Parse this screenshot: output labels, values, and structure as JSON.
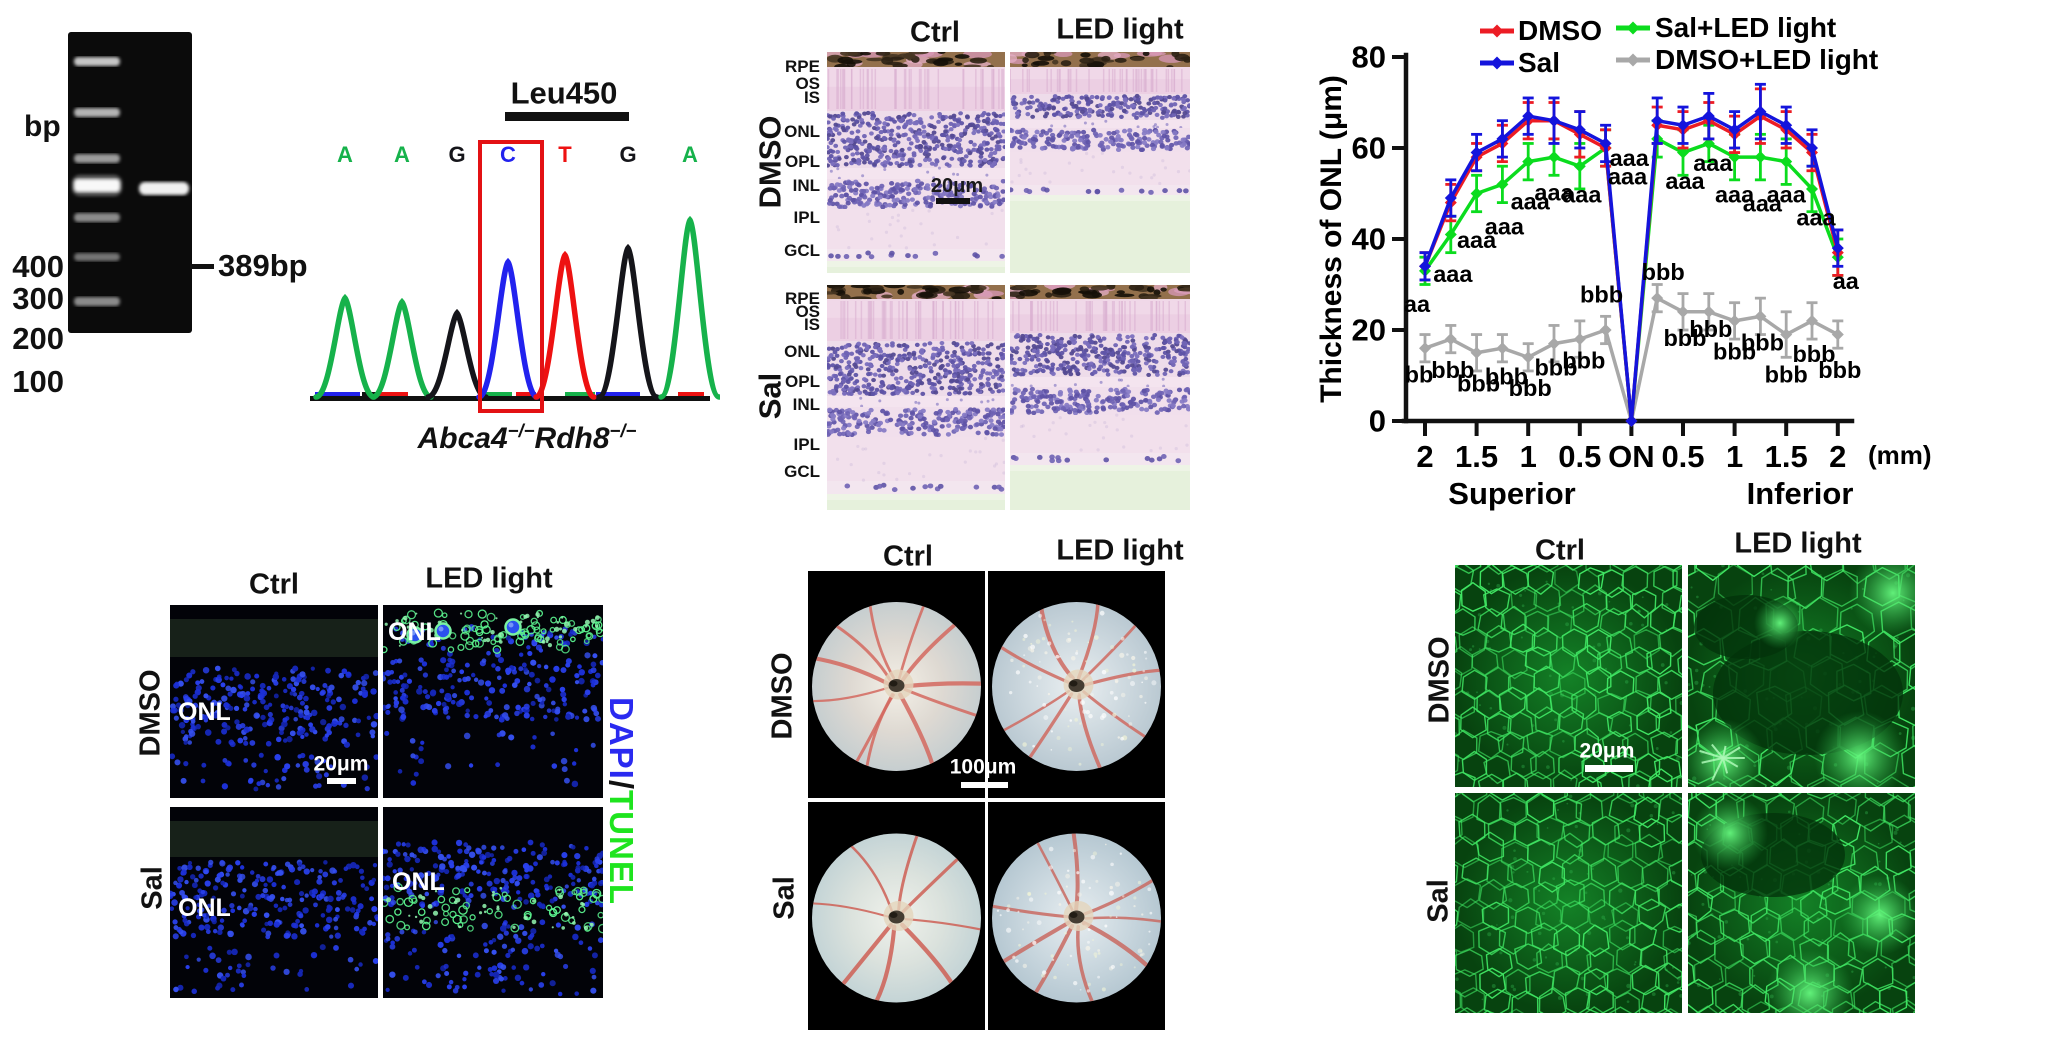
{
  "gel": {
    "unit_label": "bp",
    "size_labels": [
      "400",
      "300",
      "200",
      "100"
    ],
    "band_label": "389bp"
  },
  "chromatogram": {
    "title": "Leu450",
    "bases": [
      {
        "letter": "A",
        "color": "#16B24B"
      },
      {
        "letter": "A",
        "color": "#16B24B"
      },
      {
        "letter": "G",
        "color": "#15151a"
      },
      {
        "letter": "C",
        "color": "#2222EE"
      },
      {
        "letter": "T",
        "color": "#EE1111"
      },
      {
        "letter": "G",
        "color": "#15151a"
      },
      {
        "letter": "A",
        "color": "#16B24B"
      }
    ],
    "highlighted_base_index": 3,
    "caption": {
      "gene1": "Abca4",
      "sup1": "−/−",
      "gene2": "Rdh8",
      "sup2": "−/−"
    }
  },
  "histology": {
    "col_headers": [
      "Ctrl",
      "LED light"
    ],
    "row_labels": [
      "DMSO",
      "Sal"
    ],
    "layers": [
      "RPE",
      "OS",
      "IS",
      "ONL",
      "OPL",
      "INL",
      "IPL",
      "GCL"
    ],
    "scale_label": "20μm"
  },
  "tunel": {
    "col_headers": [
      "Ctrl",
      "LED light"
    ],
    "row_labels": [
      "DMSO",
      "Sal"
    ],
    "onl_label": "ONL",
    "scale_label": "20μm",
    "stain": {
      "dapi": "DAPI",
      "slash": "/",
      "tunel": "TUNEL",
      "dapi_color": "#2a2af0",
      "tunel_color": "#1ee41e"
    }
  },
  "fundus": {
    "col_headers": [
      "Ctrl",
      "LED light"
    ],
    "row_labels": [
      "DMSO",
      "Sal"
    ],
    "scale_label": "100μm"
  },
  "rpe": {
    "col_headers": [
      "Ctrl",
      "LED light"
    ],
    "row_labels": [
      "DMSO",
      "Sal"
    ],
    "scale_label": "20μm"
  },
  "chart_data": {
    "type": "line",
    "title": "",
    "ylabel": "Thickness of ONL (μm)",
    "x_unit_label": "(mm)",
    "x_tick_labels": [
      "2",
      "1.5",
      "1",
      "0.5",
      "ON",
      "0.5",
      "1",
      "1.5",
      "2"
    ],
    "region_labels": {
      "left": "Superior",
      "right": "Inferior"
    },
    "ylim": [
      0,
      80
    ],
    "yticks": [
      0,
      20,
      40,
      60,
      80
    ],
    "x_points_mm": [
      "2",
      "1.75",
      "1.5",
      "1.25",
      "1",
      "0.75",
      "0.5",
      "0.25",
      "ON",
      "0.25",
      "0.5",
      "0.75",
      "1",
      "1.25",
      "1.5",
      "1.75",
      "2"
    ],
    "grid": false,
    "legend_position": "top",
    "series": [
      {
        "name": "DMSO",
        "color": "#EC1C24",
        "values": [
          34,
          48,
          58,
          61,
          66,
          66,
          63,
          60,
          0,
          65,
          64,
          66,
          63,
          67,
          64,
          59,
          37
        ],
        "err": [
          3,
          4,
          3,
          4,
          4,
          4,
          5,
          4,
          0,
          4,
          4,
          4,
          4,
          6,
          4,
          4,
          5
        ]
      },
      {
        "name": "Sal",
        "color": "#1414DC",
        "values": [
          34,
          49,
          59,
          62,
          67,
          66,
          64,
          61,
          0,
          66,
          65,
          67,
          64,
          68,
          65,
          60,
          38
        ],
        "err": [
          3,
          4,
          4,
          4,
          4,
          5,
          4,
          4,
          0,
          5,
          4,
          5,
          4,
          6,
          4,
          4,
          4
        ]
      },
      {
        "name": "Sal+LED light",
        "color": "#0BDC1E",
        "values": [
          33,
          41,
          50,
          52,
          57,
          58,
          56,
          60,
          0,
          62,
          59,
          61,
          58,
          58,
          57,
          51,
          36
        ],
        "err": [
          3,
          4,
          4,
          4,
          4,
          4,
          5,
          4,
          0,
          4,
          5,
          4,
          5,
          5,
          5,
          5,
          4
        ]
      },
      {
        "name": "DMSO+LED light",
        "color": "#A8A8A8",
        "values": [
          16,
          18,
          15,
          16,
          14,
          17,
          18,
          20,
          0,
          27,
          24,
          24,
          22,
          23,
          19,
          22,
          19
        ],
        "err": [
          3,
          3,
          4,
          3,
          3,
          4,
          4,
          3,
          0,
          3,
          4,
          4,
          4,
          4,
          5,
          4,
          3
        ]
      }
    ],
    "legend": {
      "col1": [
        "DMSO",
        "Sal"
      ],
      "col2": [
        "Sal+LED light",
        "DMSO+LED light"
      ]
    },
    "annotations": {
      "a": [
        [
          "aa",
          0,
          24,
          -8
        ],
        [
          "aaa",
          1,
          30.5,
          2
        ],
        [
          "aaa",
          2,
          38,
          0
        ],
        [
          "aaa",
          3,
          41,
          2
        ],
        [
          "aaa",
          4,
          46.5,
          2
        ],
        [
          "aaa",
          5,
          48.5,
          0
        ],
        [
          "aaa",
          6,
          48,
          2
        ],
        [
          "aaa",
          7,
          52,
          22
        ],
        [
          "aaa",
          9,
          56,
          -28
        ],
        [
          "aaa",
          10,
          51,
          2
        ],
        [
          "aaa",
          11,
          55,
          4
        ],
        [
          "aaa",
          12,
          48,
          0
        ],
        [
          "aaa",
          13,
          46,
          2
        ],
        [
          "aaa",
          14,
          48,
          0
        ],
        [
          "aaa",
          15,
          43,
          4
        ],
        [
          "aa",
          16,
          29,
          8
        ]
      ],
      "b": [
        [
          "bb",
          0,
          8.5,
          -6
        ],
        [
          "bbb",
          1,
          9.5,
          2
        ],
        [
          "bbb",
          2,
          6.5,
          2
        ],
        [
          "bbb",
          3,
          8,
          4
        ],
        [
          "bbb",
          4,
          5.5,
          2
        ],
        [
          "bbb",
          5,
          10,
          2
        ],
        [
          "bbb",
          6,
          11.5,
          4
        ],
        [
          "bbb",
          7,
          26,
          -4
        ],
        [
          "bbb",
          9,
          31,
          6
        ],
        [
          "bbb",
          10,
          16.5,
          2
        ],
        [
          "bbb",
          11,
          18.5,
          2
        ],
        [
          "bbb",
          12,
          13.5,
          0
        ],
        [
          "bbb",
          13,
          15.5,
          2
        ],
        [
          "bbb",
          14,
          8.5,
          0
        ],
        [
          "bbb",
          15,
          13,
          2
        ],
        [
          "bbb",
          16,
          9.5,
          2
        ]
      ]
    }
  }
}
